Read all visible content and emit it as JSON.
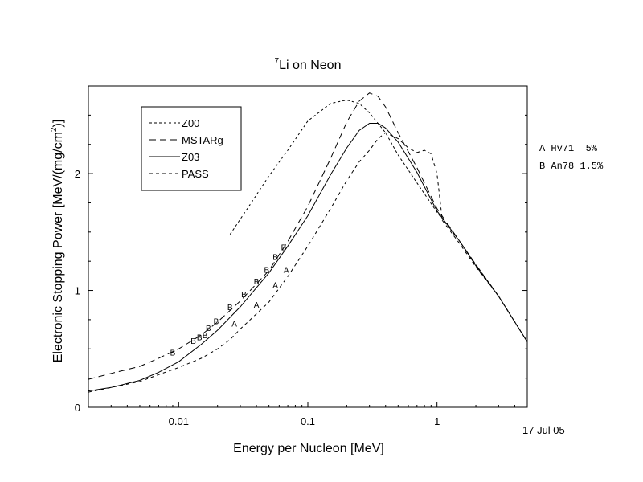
{
  "chart_data": {
    "type": "line",
    "title_sup": "7",
    "title": "Li on Neon",
    "xlabel": "Energy per Nucleon [MeV]",
    "ylabel": "Electronic Stopping Power [MeV/(mg/cm2)]",
    "ylabel_parts": [
      "Electronic Stopping Power [MeV/(mg/cm",
      "2",
      ")]"
    ],
    "xscale": "log",
    "xlim": [
      0.002,
      5
    ],
    "ylim": [
      0,
      2.75
    ],
    "xticks": [
      {
        "value": 0.01,
        "label": "0.01"
      },
      {
        "value": 0.1,
        "label": "0.1"
      },
      {
        "value": 1,
        "label": "1"
      }
    ],
    "yticks": [
      {
        "value": 0,
        "label": "0"
      },
      {
        "value": 1,
        "label": "1"
      },
      {
        "value": 2,
        "label": "2"
      }
    ],
    "legend_position": "top-left",
    "series": [
      {
        "name": "Z00",
        "dash": "3,3",
        "points": [
          [
            0.025,
            1.48
          ],
          [
            0.035,
            1.72
          ],
          [
            0.05,
            1.98
          ],
          [
            0.07,
            2.2
          ],
          [
            0.1,
            2.45
          ],
          [
            0.15,
            2.6
          ],
          [
            0.2,
            2.63
          ],
          [
            0.25,
            2.6
          ],
          [
            0.3,
            2.52
          ],
          [
            0.4,
            2.35
          ],
          [
            0.5,
            2.16
          ],
          [
            0.7,
            1.92
          ],
          [
            1.0,
            1.67
          ],
          [
            1.5,
            1.42
          ],
          [
            2.0,
            1.22
          ],
          [
            3.0,
            0.95
          ],
          [
            5.0,
            0.56
          ]
        ]
      },
      {
        "name": "MSTARg",
        "dash": "8,5",
        "points": [
          [
            0.002,
            0.24
          ],
          [
            0.003,
            0.29
          ],
          [
            0.005,
            0.35
          ],
          [
            0.007,
            0.42
          ],
          [
            0.01,
            0.5
          ],
          [
            0.015,
            0.62
          ],
          [
            0.02,
            0.73
          ],
          [
            0.03,
            0.91
          ],
          [
            0.05,
            1.17
          ],
          [
            0.07,
            1.42
          ],
          [
            0.1,
            1.72
          ],
          [
            0.15,
            2.13
          ],
          [
            0.2,
            2.44
          ],
          [
            0.25,
            2.62
          ],
          [
            0.3,
            2.69
          ],
          [
            0.35,
            2.66
          ],
          [
            0.4,
            2.57
          ],
          [
            0.5,
            2.35
          ],
          [
            0.7,
            2.05
          ],
          [
            1.0,
            1.7
          ],
          [
            1.5,
            1.42
          ],
          [
            2.0,
            1.22
          ],
          [
            3.0,
            0.95
          ],
          [
            5.0,
            0.56
          ]
        ]
      },
      {
        "name": "Z03",
        "dash": "",
        "points": [
          [
            0.002,
            0.14
          ],
          [
            0.003,
            0.17
          ],
          [
            0.005,
            0.23
          ],
          [
            0.007,
            0.3
          ],
          [
            0.01,
            0.39
          ],
          [
            0.015,
            0.54
          ],
          [
            0.02,
            0.66
          ],
          [
            0.03,
            0.86
          ],
          [
            0.05,
            1.15
          ],
          [
            0.07,
            1.38
          ],
          [
            0.1,
            1.64
          ],
          [
            0.15,
            1.99
          ],
          [
            0.2,
            2.22
          ],
          [
            0.25,
            2.37
          ],
          [
            0.3,
            2.43
          ],
          [
            0.35,
            2.43
          ],
          [
            0.4,
            2.39
          ],
          [
            0.5,
            2.27
          ],
          [
            0.7,
            2.01
          ],
          [
            1.0,
            1.68
          ],
          [
            1.5,
            1.42
          ],
          [
            2.0,
            1.21
          ],
          [
            3.0,
            0.95
          ],
          [
            5.0,
            0.56
          ]
        ]
      },
      {
        "name": "PASS",
        "dash": "4,4",
        "points": [
          [
            0.002,
            0.13
          ],
          [
            0.003,
            0.17
          ],
          [
            0.005,
            0.22
          ],
          [
            0.007,
            0.28
          ],
          [
            0.01,
            0.34
          ],
          [
            0.015,
            0.42
          ],
          [
            0.02,
            0.5
          ],
          [
            0.025,
            0.58
          ],
          [
            0.03,
            0.67
          ],
          [
            0.05,
            0.9
          ],
          [
            0.07,
            1.12
          ],
          [
            0.1,
            1.38
          ],
          [
            0.15,
            1.7
          ],
          [
            0.2,
            1.94
          ],
          [
            0.25,
            2.1
          ],
          [
            0.3,
            2.2
          ],
          [
            0.35,
            2.3
          ],
          [
            0.4,
            2.35
          ],
          [
            0.5,
            2.3
          ],
          [
            0.6,
            2.22
          ],
          [
            0.7,
            2.18
          ],
          [
            0.8,
            2.2
          ],
          [
            0.9,
            2.17
          ],
          [
            1.0,
            2.0
          ],
          [
            1.1,
            1.6
          ],
          [
            1.5,
            1.4
          ],
          [
            2.0,
            1.2
          ],
          [
            3.0,
            0.95
          ],
          [
            5.0,
            0.56
          ]
        ]
      }
    ],
    "experimental": [
      {
        "marker": "A",
        "label": "A Hv71  5%",
        "points": [
          [
            0.027,
            0.72
          ],
          [
            0.04,
            0.88
          ],
          [
            0.056,
            1.05
          ],
          [
            0.068,
            1.18
          ]
        ]
      },
      {
        "marker": "B",
        "label": "B An78 1.5%",
        "points": [
          [
            0.009,
            0.47
          ],
          [
            0.013,
            0.57
          ],
          [
            0.0145,
            0.6
          ],
          [
            0.016,
            0.62
          ],
          [
            0.017,
            0.68
          ],
          [
            0.0195,
            0.74
          ],
          [
            0.025,
            0.86
          ],
          [
            0.032,
            0.97
          ],
          [
            0.04,
            1.08
          ],
          [
            0.048,
            1.18
          ],
          [
            0.056,
            1.29
          ],
          [
            0.065,
            1.37
          ]
        ]
      }
    ]
  },
  "annotations": {
    "refs": [
      "A Hv71  5%",
      "B An78 1.5%"
    ],
    "date": "17 Jul 05"
  }
}
